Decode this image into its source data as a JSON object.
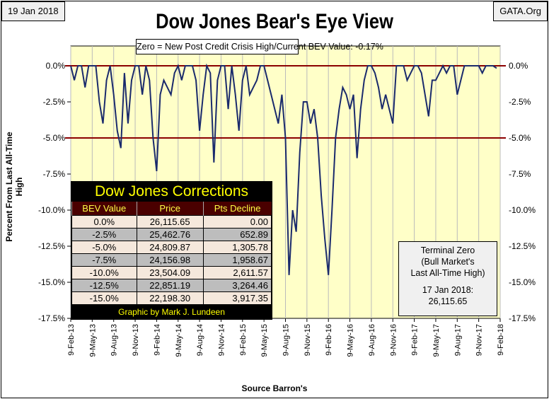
{
  "header": {
    "date": "19 Jan 2018",
    "site": "GATA.Org",
    "title": "Dow Jones Bear's Eye View",
    "subtitle": "Zero = New Post Credit Crisis High/Current BEV Value:  -0.17%"
  },
  "chart_data": {
    "type": "line",
    "title": "Dow Jones Bear's Eye View",
    "xlabel": "Source Barron's",
    "ylabel": "Percent From Last All-Time High",
    "ylim": [
      -17.5,
      0
    ],
    "yticks": [
      "0.0%",
      "-2.5%",
      "-5.0%",
      "-7.5%",
      "-10.0%",
      "-12.5%",
      "-15.0%",
      "-17.5%"
    ],
    "xticks": [
      "9-Feb-13",
      "9-May-13",
      "9-Aug-13",
      "9-Nov-13",
      "9-Feb-14",
      "9-May-14",
      "9-Aug-14",
      "9-Nov-14",
      "9-Feb-15",
      "9-May-15",
      "9-Aug-15",
      "9-Nov-15",
      "9-Feb-16",
      "9-May-16",
      "9-Aug-16",
      "9-Nov-16",
      "9-Feb-17",
      "9-May-17",
      "9-Aug-17",
      "9-Nov-17",
      "9-Feb-18"
    ],
    "reference_lines": [
      0,
      -5
    ],
    "series": [
      {
        "name": "Dow Jones BEV",
        "x_unit": "half-months since Feb 2013",
        "values": [
          0,
          -1,
          0,
          0,
          -1.5,
          0,
          0,
          0,
          -2.5,
          -4,
          -1,
          0,
          -2,
          -4.5,
          -5.7,
          -0.5,
          -4,
          -1,
          0,
          0,
          -2,
          0,
          -1,
          -5,
          -7.3,
          -2,
          -1,
          -1.5,
          -2,
          -0.5,
          0,
          -1,
          0,
          0,
          0,
          -1,
          -4.5,
          -2,
          0,
          -0.5,
          -6.7,
          -1,
          0,
          0,
          -3,
          0,
          -2,
          -4.5,
          -1,
          0,
          -2,
          -1.5,
          -1,
          0,
          0,
          -1,
          -2,
          -3,
          -4,
          -2,
          -5,
          -14.5,
          -10,
          -11.5,
          -6,
          -2.5,
          -2.5,
          -4,
          -3,
          -5,
          -9,
          -12,
          -14.5,
          -10,
          -5,
          -3,
          -1.5,
          -2,
          -3,
          -2,
          -6.4,
          -3,
          -1,
          0,
          0,
          -0.5,
          -1.5,
          -3,
          -2,
          -3,
          -4,
          0,
          0,
          0,
          -1,
          -0.5,
          0,
          0,
          -0.5,
          -2,
          -3.5,
          -1,
          -1,
          -0.5,
          0,
          -0.5,
          0,
          0,
          -2,
          -1,
          0,
          0,
          0,
          0,
          0,
          -0.5,
          0,
          0,
          0,
          -0.17
        ]
      }
    ]
  },
  "table": {
    "title": "Dow Jones Corrections",
    "headers": [
      "BEV Value",
      "Price",
      "Pts Decline"
    ],
    "rows": [
      [
        "0.0%",
        "26,115.65",
        "0.00"
      ],
      [
        "-2.5%",
        "25,462.76",
        "652.89"
      ],
      [
        "-5.0%",
        "24,809.87",
        "1,305.78"
      ],
      [
        "-7.5%",
        "24,156.98",
        "1,958.67"
      ],
      [
        "-10.0%",
        "23,504.09",
        "2,611.57"
      ],
      [
        "-12.5%",
        "22,851.19",
        "3,264.46"
      ],
      [
        "-15.0%",
        "22,198.30",
        "3,917.35"
      ]
    ],
    "footer": "Graphic by Mark J. Lundeen"
  },
  "terminal": {
    "l1": "Terminal Zero",
    "l2": "(Bull Market's",
    "l3": "Last All-Time High)",
    "l4": "17 Jan 2018:",
    "l5": "26,115.65"
  },
  "colors": {
    "plot_bg": "#ffffc8",
    "line": "#1a2a6c",
    "ref": "#8b0000"
  }
}
